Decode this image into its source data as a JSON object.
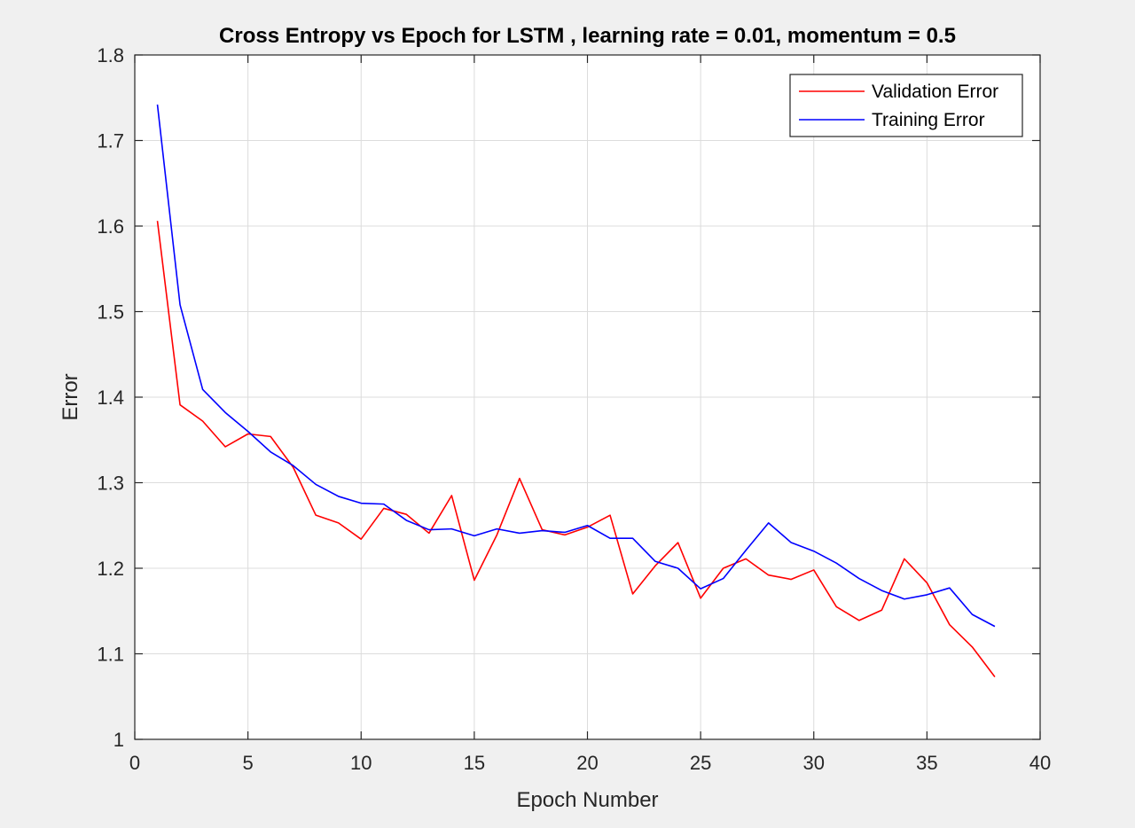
{
  "chart_data": {
    "type": "line",
    "title": "Cross Entropy vs Epoch for LSTM , learning rate = 0.01, momentum = 0.5",
    "xlabel": "Epoch Number",
    "ylabel": "Error",
    "xlim": [
      0,
      40
    ],
    "ylim": [
      1,
      1.8
    ],
    "xticks": [
      0,
      5,
      10,
      15,
      20,
      25,
      30,
      35,
      40
    ],
    "xtick_labels": [
      "0",
      "5",
      "10",
      "15",
      "20",
      "25",
      "30",
      "35",
      "40"
    ],
    "yticks": [
      1,
      1.1,
      1.2,
      1.3,
      1.4,
      1.5,
      1.6,
      1.7,
      1.8
    ],
    "ytick_labels": [
      "1",
      "1.1",
      "1.2",
      "1.3",
      "1.4",
      "1.5",
      "1.6",
      "1.7",
      "1.8"
    ],
    "grid": true,
    "legend_position": "top-right",
    "x": [
      1,
      2,
      3,
      4,
      5,
      6,
      7,
      8,
      9,
      10,
      11,
      12,
      13,
      14,
      15,
      16,
      17,
      18,
      19,
      20,
      21,
      22,
      23,
      24,
      25,
      26,
      27,
      28,
      29,
      30,
      31,
      32,
      33,
      34,
      35,
      36,
      37,
      38
    ],
    "series": [
      {
        "name": "Validation Error",
        "color": "#ff0000",
        "values": [
          1.606,
          1.391,
          1.372,
          1.342,
          1.357,
          1.354,
          1.318,
          1.262,
          1.253,
          1.234,
          1.27,
          1.263,
          1.241,
          1.285,
          1.186,
          1.239,
          1.305,
          1.245,
          1.239,
          1.248,
          1.262,
          1.17,
          1.203,
          1.23,
          1.165,
          1.2,
          1.211,
          1.192,
          1.187,
          1.198,
          1.155,
          1.139,
          1.151,
          1.211,
          1.183,
          1.134,
          1.108,
          1.073
        ]
      },
      {
        "name": "Training Error",
        "color": "#0000ff",
        "values": [
          1.742,
          1.508,
          1.409,
          1.382,
          1.36,
          1.336,
          1.32,
          1.298,
          1.284,
          1.276,
          1.275,
          1.256,
          1.245,
          1.246,
          1.238,
          1.246,
          1.241,
          1.244,
          1.242,
          1.25,
          1.235,
          1.235,
          1.208,
          1.2,
          1.176,
          1.188,
          1.221,
          1.253,
          1.23,
          1.22,
          1.206,
          1.188,
          1.174,
          1.164,
          1.169,
          1.177,
          1.146,
          1.132
        ]
      }
    ]
  }
}
